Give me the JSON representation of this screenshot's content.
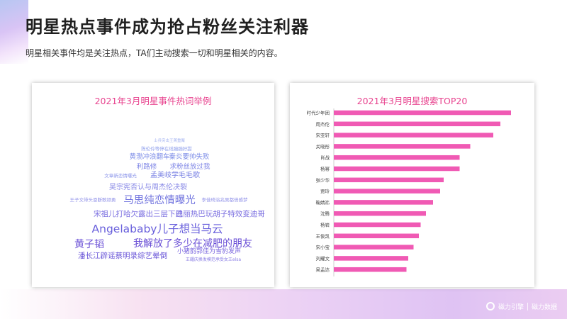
{
  "header": {
    "title": "明星热点事件成为抢占粉丝关注利器",
    "subtitle": "明星相关事件均是关注热点，TA们主动搜索一切和明星相关的内容。"
  },
  "word_cloud": {
    "title": "2021年3月明星事件热词举例",
    "words": [
      {
        "text": "士兵突击王菁重聚",
        "color": "#a3b2f0"
      },
      {
        "text": "陈伦伶等停在线蹦蹦好甜",
        "color": "#8f9fec"
      },
      {
        "text": "黄渤冲浪翻车",
        "color": "#7e8ee8"
      },
      {
        "text": "秦炎要帅失败",
        "color": "#7e8ee8"
      },
      {
        "text": "利路修",
        "color": "#7f86e6"
      },
      {
        "text": "求粉丝放过我",
        "color": "#7f86e6"
      },
      {
        "text": "文章新恋情曝光",
        "color": "#8a94ea"
      },
      {
        "text": "孟美岐学毛毛歌",
        "color": "#7a82e4"
      },
      {
        "text": "吴宗宪否认与周杰伦决裂",
        "color": "#8586e6"
      },
      {
        "text": "王子文带头恩断歌颂勇",
        "color": "#8f90e8"
      },
      {
        "text": "马思纯恋情曝光",
        "color": "#6f72de"
      },
      {
        "text": "李佳琦浴兆吴都倍感梦",
        "color": "#8f90e8"
      },
      {
        "text": "宋祖儿打哈欠露出三层下巴",
        "color": "#7a6ee0"
      },
      {
        "text": "迪丽热巴玩胡子特效",
        "color": "#7a6ee0"
      },
      {
        "text": "变迪哥",
        "color": "#7a6ee0"
      },
      {
        "text": "Angelababy儿子想当马云",
        "color": "#6960dc"
      },
      {
        "text": "黄子韬",
        "color": "#6a4fd6"
      },
      {
        "text": "我解放了多少在减肥的朋友",
        "color": "#6a4fd6"
      },
      {
        "text": "小猪韵郭佳为雪豹发声",
        "color": "#7a66de"
      },
      {
        "text": "潘长江辟谣蔡明录综艺晕倒",
        "color": "#6a56d8"
      },
      {
        "text": "王耀庆换发模范承受女王elsa",
        "color": "#8a7ee4"
      }
    ]
  },
  "chart_data": {
    "type": "bar",
    "orientation": "horizontal",
    "title": "2021年3月明星搜索TOP20",
    "color": "#f05ab4",
    "categories": [
      "时代少年团",
      "周杰伦",
      "宋亚轩",
      "关晓彤",
      "肖战",
      "杨幂",
      "张少华",
      "贾玲",
      "鞠婧祎",
      "沈腾",
      "杨岩",
      "王俊凯",
      "宋小宝",
      "刘耀文",
      "吴孟达"
    ],
    "values": [
      100,
      94,
      90,
      77,
      71,
      71,
      62,
      60,
      56,
      52,
      49,
      48,
      45,
      42,
      41
    ],
    "xlim": [
      0,
      100
    ],
    "xlabel": "",
    "ylabel": ""
  },
  "footer": {
    "brand1": "磁力引擎",
    "brand2": "磁力数据"
  }
}
